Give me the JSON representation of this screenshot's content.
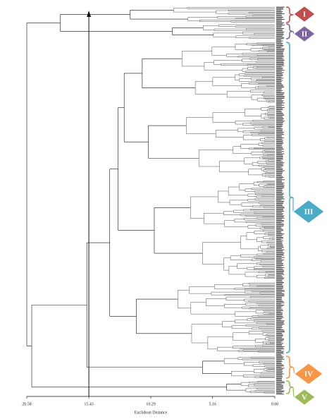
{
  "chart_data": {
    "type": "dendrogram",
    "xlabel": "Euclidean Distance",
    "xlim": [
      20.58,
      0
    ],
    "xticks": [
      20.58,
      15.43,
      10.29,
      5.16,
      {
        "value": 0,
        "label": "0.00"
      }
    ],
    "groups": [
      {
        "height": 12.0
      },
      {
        "height": 8.5
      },
      {
        "height": 11.0
      },
      {
        "height": 10.5
      },
      {
        "height": 10.0
      },
      {
        "height": 11.5
      },
      {
        "height": 6.0
      },
      {
        "height": 4.0
      }
    ],
    "merges": [
      {
        "height": 17.8
      },
      {
        "height": 12.5
      },
      {
        "height": 13.0
      },
      {
        "height": 13.7
      },
      {
        "height": 15.6
      },
      {
        "height": 20.17
      },
      {
        "height": 20.58
      }
    ],
    "cut": 15.43,
    "clusters": [
      {
        "label": "I",
        "color": "#c0504d"
      },
      {
        "label": "II",
        "color": "#8064a2"
      },
      {
        "label": "III",
        "color": "#4bacc6"
      },
      {
        "label": "IV",
        "color": "#f79646"
      },
      {
        "label": "V",
        "color": "#9bbb59"
      }
    ]
  }
}
